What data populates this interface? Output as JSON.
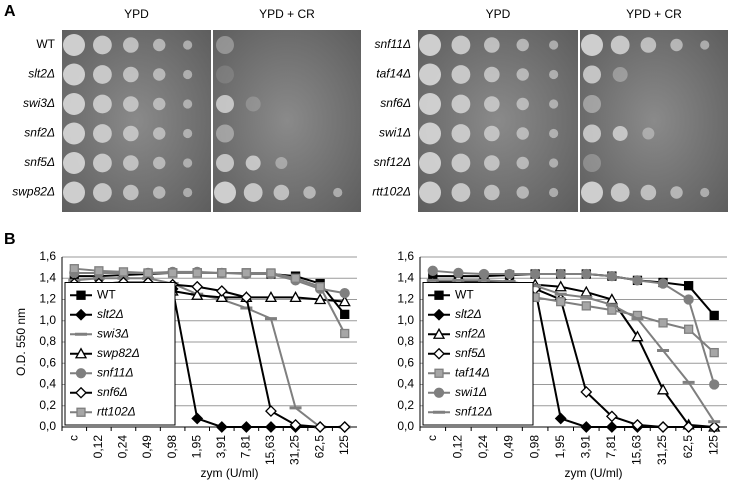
{
  "panel_a": {
    "label": "A",
    "groups": [
      {
        "headers": [
          "YPD",
          "YPD + CR"
        ],
        "strains": [
          "WT",
          "slt2Δ",
          "swi3Δ",
          "snf2Δ",
          "snf5Δ",
          "swp82Δ"
        ]
      },
      {
        "headers": [
          "YPD",
          "YPD + CR"
        ],
        "strains": [
          "snf11Δ",
          "taf14Δ",
          "snf6Δ",
          "swi1Δ",
          "snf12Δ",
          "rtt102Δ"
        ]
      }
    ]
  },
  "panel_b": {
    "label": "B"
  },
  "chart_data": [
    {
      "type": "line",
      "xlabel": "zym (U/ml)",
      "ylabel": "O.D. 550 nm",
      "categories": [
        "c",
        "0,12",
        "0,24",
        "0,49",
        "0,98",
        "1,95",
        "3,91",
        "7,81",
        "15,63",
        "31,25",
        "62,5",
        "125"
      ],
      "ylim": [
        0,
        1.6
      ],
      "yticks": [
        {
          "value": 0,
          "label": "0,0"
        },
        {
          "value": 0.2,
          "label": "0,2"
        },
        {
          "value": 0.4,
          "label": "0,4"
        },
        {
          "value": 0.6,
          "label": "0,6"
        },
        {
          "value": 0.8,
          "label": "0,8"
        },
        {
          "value": 1.0,
          "label": "1,0"
        },
        {
          "value": 1.2,
          "label": "1,2"
        },
        {
          "value": 1.4,
          "label": "1,4"
        },
        {
          "value": 1.6,
          "label": "1,6"
        }
      ],
      "grid": true,
      "legend": "lower left",
      "series": [
        {
          "name": "WT",
          "color": "#000000",
          "marker": "square",
          "marker_fill": "#000000",
          "values": [
            1.42,
            1.42,
            1.43,
            1.44,
            1.45,
            1.45,
            1.45,
            1.45,
            1.44,
            1.42,
            1.35,
            1.06
          ]
        },
        {
          "name": "slt2Δ",
          "color": "#000000",
          "marker": "diamond",
          "marker_fill": "#000000",
          "values": [
            1.32,
            1.35,
            1.36,
            1.36,
            1.3,
            0.08,
            0.0,
            0.0,
            0.0,
            0.0,
            0.0,
            0.0
          ]
        },
        {
          "name": "swi3Δ",
          "color": "#7f7f7f",
          "marker": "dash",
          "marker_fill": "#7f7f7f",
          "values": [
            1.38,
            1.4,
            1.4,
            1.4,
            1.35,
            1.25,
            1.2,
            1.12,
            1.02,
            0.18,
            0.0,
            0.0
          ]
        },
        {
          "name": "swp82Δ",
          "color": "#000000",
          "marker": "triangle",
          "marker_fill": "#ffffff",
          "values": [
            1.32,
            1.33,
            1.33,
            1.33,
            1.28,
            1.24,
            1.22,
            1.22,
            1.22,
            1.22,
            1.2,
            1.18
          ]
        },
        {
          "name": "snf11Δ",
          "color": "#7f7f7f",
          "marker": "circle",
          "marker_fill": "#7f7f7f",
          "values": [
            1.45,
            1.45,
            1.45,
            1.45,
            1.46,
            1.46,
            1.45,
            1.44,
            1.44,
            1.38,
            1.3,
            1.26
          ]
        },
        {
          "name": "snf6Δ",
          "color": "#000000",
          "marker": "diamond",
          "marker_fill": "#ffffff",
          "values": [
            1.35,
            1.35,
            1.36,
            1.36,
            1.34,
            1.32,
            1.28,
            1.22,
            0.15,
            0.02,
            0.0,
            0.0
          ]
        },
        {
          "name": "rtt102Δ",
          "color": "#7f7f7f",
          "marker": "square",
          "marker_fill": "#a6a6a6",
          "values": [
            1.49,
            1.47,
            1.46,
            1.45,
            1.45,
            1.45,
            1.45,
            1.45,
            1.45,
            1.4,
            1.32,
            0.88
          ]
        }
      ]
    },
    {
      "type": "line",
      "xlabel": "zym (U/ml)",
      "categories": [
        "c",
        "0,12",
        "0,24",
        "0,49",
        "0,98",
        "1,95",
        "3,91",
        "7,81",
        "15,63",
        "31,25",
        "62,5",
        "125"
      ],
      "ylim": [
        0,
        1.6
      ],
      "yticks": [
        {
          "value": 0,
          "label": "0,0"
        },
        {
          "value": 0.2,
          "label": "0,2"
        },
        {
          "value": 0.4,
          "label": "0,4"
        },
        {
          "value": 0.6,
          "label": "0,6"
        },
        {
          "value": 0.8,
          "label": "0,8"
        },
        {
          "value": 1.0,
          "label": "1,0"
        },
        {
          "value": 1.2,
          "label": "1,2"
        },
        {
          "value": 1.4,
          "label": "1,4"
        },
        {
          "value": 1.6,
          "label": "1,6"
        }
      ],
      "grid": true,
      "legend": "lower left",
      "series": [
        {
          "name": "WT",
          "color": "#000000",
          "marker": "square",
          "marker_fill": "#000000",
          "values": [
            1.42,
            1.42,
            1.42,
            1.43,
            1.44,
            1.44,
            1.44,
            1.42,
            1.38,
            1.36,
            1.33,
            1.05
          ]
        },
        {
          "name": "slt2Δ",
          "color": "#000000",
          "marker": "diamond",
          "marker_fill": "#000000",
          "values": [
            1.32,
            1.34,
            1.34,
            1.34,
            1.3,
            0.08,
            0.0,
            0.0,
            0.0,
            0.0,
            0.0,
            0.0
          ]
        },
        {
          "name": "snf2Δ",
          "color": "#000000",
          "marker": "triangle",
          "marker_fill": "#ffffff",
          "values": [
            1.34,
            1.36,
            1.36,
            1.36,
            1.34,
            1.32,
            1.27,
            1.2,
            0.85,
            0.35,
            0.02,
            0.0
          ]
        },
        {
          "name": "snf5Δ",
          "color": "#000000",
          "marker": "diamond",
          "marker_fill": "#ffffff",
          "values": [
            1.36,
            1.38,
            1.38,
            1.36,
            1.3,
            1.2,
            0.33,
            0.1,
            0.02,
            0.0,
            0.0,
            0.0
          ]
        },
        {
          "name": "taf14Δ",
          "color": "#7f7f7f",
          "marker": "square",
          "marker_fill": "#a6a6a6",
          "values": [
            1.32,
            1.3,
            1.28,
            1.26,
            1.22,
            1.18,
            1.14,
            1.1,
            1.05,
            0.98,
            0.92,
            0.7
          ]
        },
        {
          "name": "swi1Δ",
          "color": "#7f7f7f",
          "marker": "circle",
          "marker_fill": "#7f7f7f",
          "values": [
            1.47,
            1.45,
            1.44,
            1.44,
            1.44,
            1.44,
            1.44,
            1.42,
            1.38,
            1.35,
            1.2,
            0.4
          ]
        },
        {
          "name": "snf12Δ",
          "color": "#7f7f7f",
          "marker": "dash",
          "marker_fill": "#7f7f7f",
          "values": [
            1.38,
            1.38,
            1.38,
            1.37,
            1.33,
            1.25,
            1.22,
            1.15,
            1.02,
            0.72,
            0.42,
            0.05
          ]
        }
      ]
    }
  ]
}
